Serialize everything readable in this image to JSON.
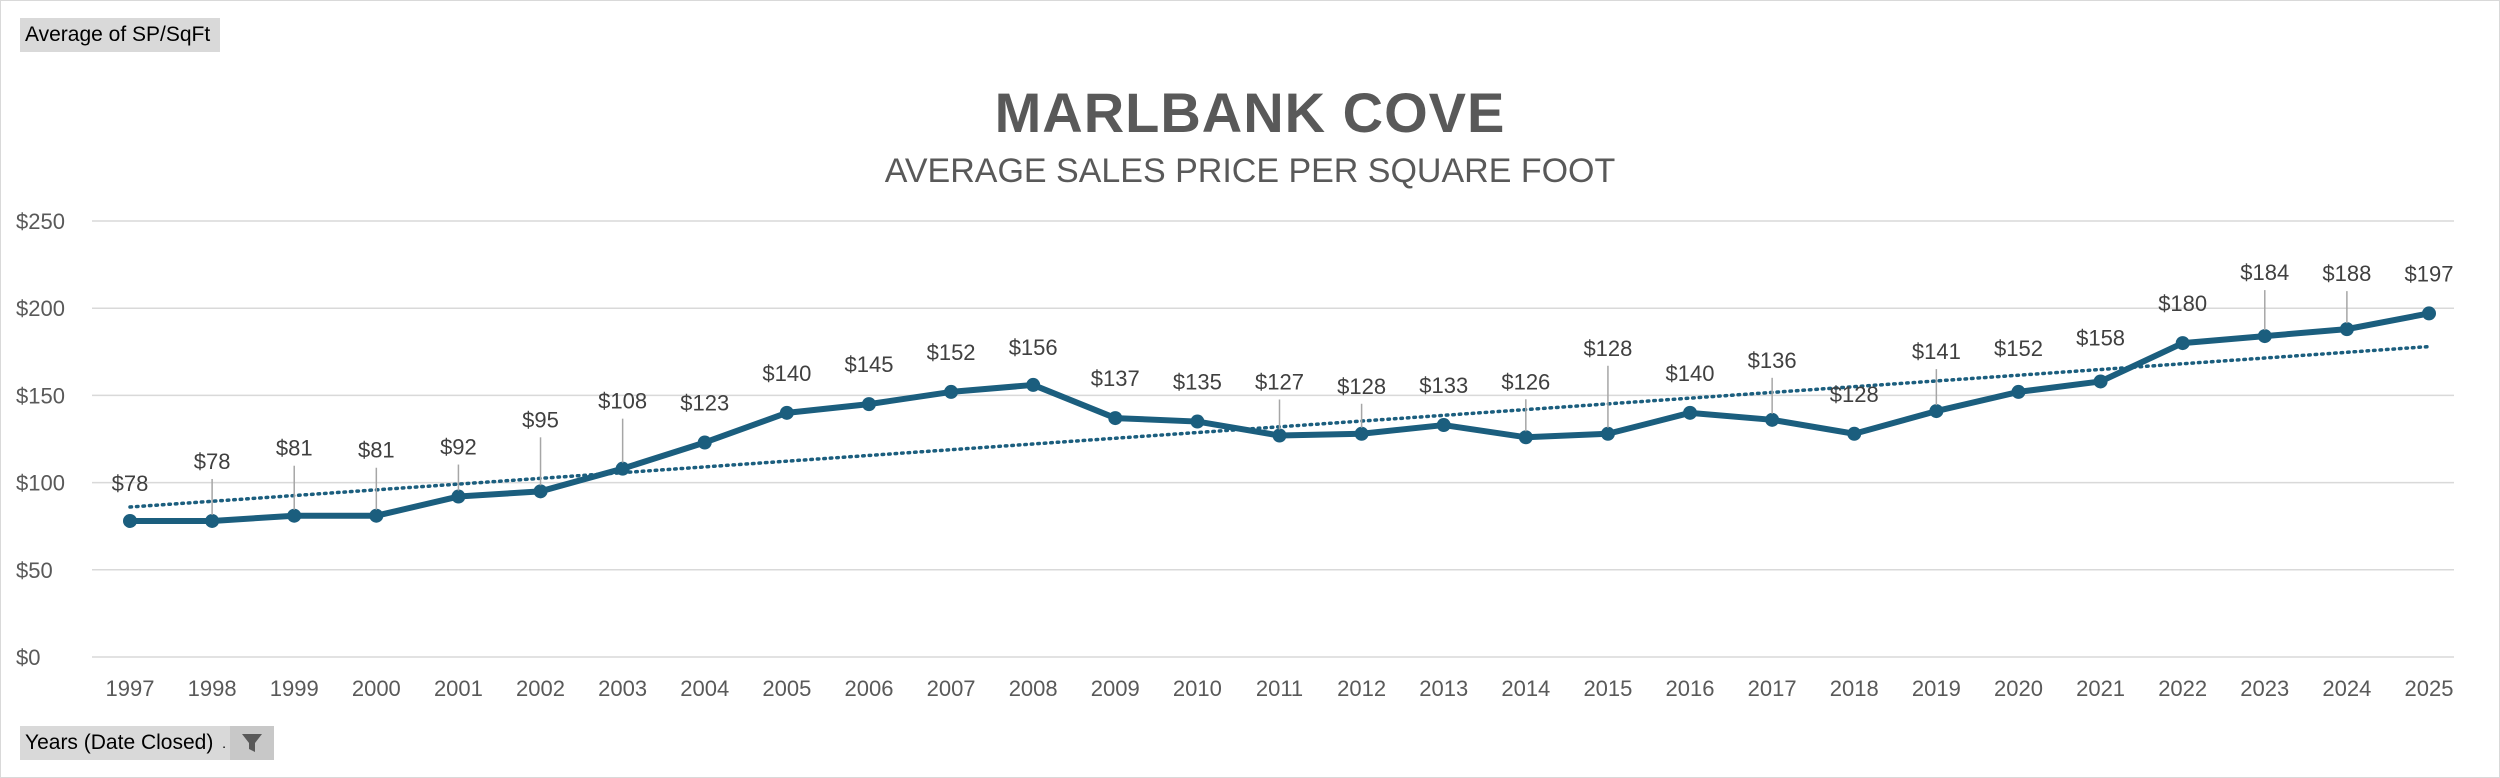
{
  "pivot": {
    "value_field": "Average of SP/SqFt",
    "axis_field": "Years (Date Closed)",
    "axis_field_dots": ".",
    "filter_icon": "funnel-icon"
  },
  "chart_data": {
    "type": "line",
    "title": "MARLBANK COVE",
    "subtitle": "AVERAGE SALES PRICE PER SQUARE FOOT",
    "xlabel": "",
    "ylabel": "",
    "categories": [
      "1997",
      "1998",
      "1999",
      "2000",
      "2001",
      "2002",
      "2003",
      "2004",
      "2005",
      "2006",
      "2007",
      "2008",
      "2009",
      "2010",
      "2011",
      "2012",
      "2013",
      "2014",
      "2015",
      "2016",
      "2017",
      "2018",
      "2019",
      "2020",
      "2021",
      "2022",
      "2023",
      "2024",
      "2025"
    ],
    "series": [
      {
        "name": "Average of SP/SqFt",
        "values": [
          78,
          78,
          81,
          81,
          92,
          95,
          108,
          123,
          140,
          145,
          152,
          156,
          137,
          135,
          127,
          128,
          133,
          126,
          128,
          140,
          136,
          128,
          141,
          152,
          158,
          180,
          184,
          188,
          197
        ],
        "data_labels": [
          "$78",
          "$78",
          "$81",
          "$81",
          "$92",
          "$95",
          "$108",
          "$123",
          "$140",
          "$145",
          "$152",
          "$156",
          "$137",
          "$135",
          "$127",
          "$128",
          "$133",
          "$126",
          "$128",
          "$140",
          "$136",
          "$128",
          "$141",
          "$152",
          "$158",
          "$180",
          "$184",
          "$188",
          "$197"
        ],
        "color": "#1b5e7e"
      }
    ],
    "trendline": {
      "type": "linear",
      "start": 86,
      "end": 178,
      "style": "dotted",
      "color": "#1b5e7e"
    },
    "ylim": [
      0,
      250
    ],
    "yticks": [
      0,
      50,
      100,
      150,
      200,
      250
    ],
    "ytick_labels": [
      "$0",
      "$50",
      "$100",
      "$150",
      "$200",
      "$250"
    ],
    "grid": true,
    "legend": "none"
  },
  "colors": {
    "line": "#1b5e7e",
    "grid": "#d9d9d9",
    "text": "#595959",
    "field_button": "#d9d9d9"
  }
}
